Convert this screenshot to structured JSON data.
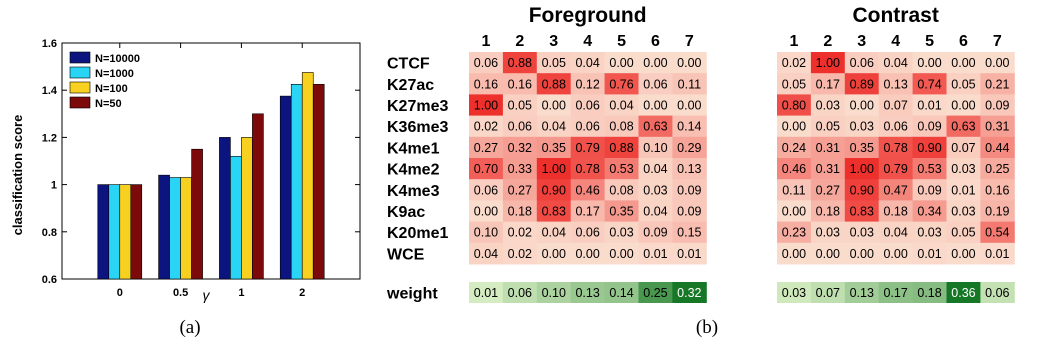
{
  "chart_data": [
    {
      "type": "bar",
      "panel_label": "(a)",
      "ylabel": "classification score",
      "xlabel": "γ",
      "ylim": [
        0.6,
        1.6
      ],
      "yticks": [
        0.6,
        0.8,
        1,
        1.2,
        1.4,
        1.6
      ],
      "categories": [
        "0",
        "0.5",
        "1",
        "2"
      ],
      "legend_placement": "top-left",
      "grid": false,
      "series": [
        {
          "name": "N=10000",
          "color": "#0c1480",
          "values": [
            1.0,
            1.04,
            1.2,
            1.375
          ]
        },
        {
          "name": "N=1000",
          "color": "#2ad4f4",
          "values": [
            1.0,
            1.03,
            1.12,
            1.425
          ]
        },
        {
          "name": "N=100",
          "color": "#f8d020",
          "values": [
            1.0,
            1.03,
            1.2,
            1.475
          ]
        },
        {
          "name": "N=50",
          "color": "#7c0a0a",
          "values": [
            1.0,
            1.15,
            1.3,
            1.425
          ]
        }
      ]
    },
    {
      "type": "heatmap",
      "panel_label": "(b)",
      "columns": [
        "1",
        "2",
        "3",
        "4",
        "5",
        "6",
        "7"
      ],
      "rows": [
        "CTCF",
        "K27ac",
        "K27me3",
        "K36me3",
        "K4me1",
        "K4me2",
        "K4me3",
        "K9ac",
        "K20me1",
        "WCE"
      ],
      "weight_label": "weight",
      "panels": [
        {
          "title": "Foreground",
          "values": [
            [
              "0.06",
              "0.88",
              "0.05",
              "0.04",
              "0.00",
              "0.00",
              "0.00"
            ],
            [
              "0.16",
              "0.16",
              "0.88",
              "0.12",
              "0.76",
              "0.06",
              "0.11"
            ],
            [
              "1.00",
              "0.05",
              "0.00",
              "0.06",
              "0.04",
              "0.00",
              "0.00"
            ],
            [
              "0.02",
              "0.06",
              "0.04",
              "0.06",
              "0.08",
              "0.63",
              "0.14"
            ],
            [
              "0.27",
              "0.32",
              "0.35",
              "0.79",
              "0.88",
              "0.10",
              "0.29"
            ],
            [
              "0.70",
              "0.33",
              "1.00",
              "0.78",
              "0.53",
              "0.04",
              "0.13"
            ],
            [
              "0.06",
              "0.27",
              "0.90",
              "0.46",
              "0.08",
              "0.03",
              "0.09"
            ],
            [
              "0.00",
              "0.18",
              "0.83",
              "0.17",
              "0.35",
              "0.04",
              "0.09"
            ],
            [
              "0.10",
              "0.02",
              "0.04",
              "0.06",
              "0.03",
              "0.09",
              "0.15"
            ],
            [
              "0.04",
              "0.02",
              "0.00",
              "0.00",
              "0.00",
              "0.01",
              "0.01"
            ]
          ],
          "weights": [
            "0.01",
            "0.06",
            "0.10",
            "0.13",
            "0.14",
            "0.25",
            "0.32"
          ]
        },
        {
          "title": "Contrast",
          "values": [
            [
              "0.02",
              "1.00",
              "0.06",
              "0.04",
              "0.00",
              "0.00",
              "0.00"
            ],
            [
              "0.05",
              "0.17",
              "0.89",
              "0.13",
              "0.74",
              "0.05",
              "0.21"
            ],
            [
              "0.80",
              "0.03",
              "0.00",
              "0.07",
              "0.01",
              "0.00",
              "0.09"
            ],
            [
              "0.00",
              "0.05",
              "0.03",
              "0.06",
              "0.09",
              "0.63",
              "0.31"
            ],
            [
              "0.24",
              "0.31",
              "0.35",
              "0.78",
              "0.90",
              "0.07",
              "0.44"
            ],
            [
              "0.46",
              "0.31",
              "1.00",
              "0.79",
              "0.53",
              "0.03",
              "0.25"
            ],
            [
              "0.11",
              "0.27",
              "0.90",
              "0.47",
              "0.09",
              "0.01",
              "0.16"
            ],
            [
              "0.00",
              "0.18",
              "0.83",
              "0.18",
              "0.34",
              "0.03",
              "0.19"
            ],
            [
              "0.23",
              "0.03",
              "0.03",
              "0.04",
              "0.03",
              "0.05",
              "0.54"
            ],
            [
              "0.00",
              "0.00",
              "0.00",
              "0.00",
              "0.01",
              "0.00",
              "0.01"
            ]
          ],
          "weights": [
            "0.03",
            "0.07",
            "0.13",
            "0.17",
            "0.18",
            "0.36",
            "0.06"
          ]
        }
      ]
    }
  ]
}
